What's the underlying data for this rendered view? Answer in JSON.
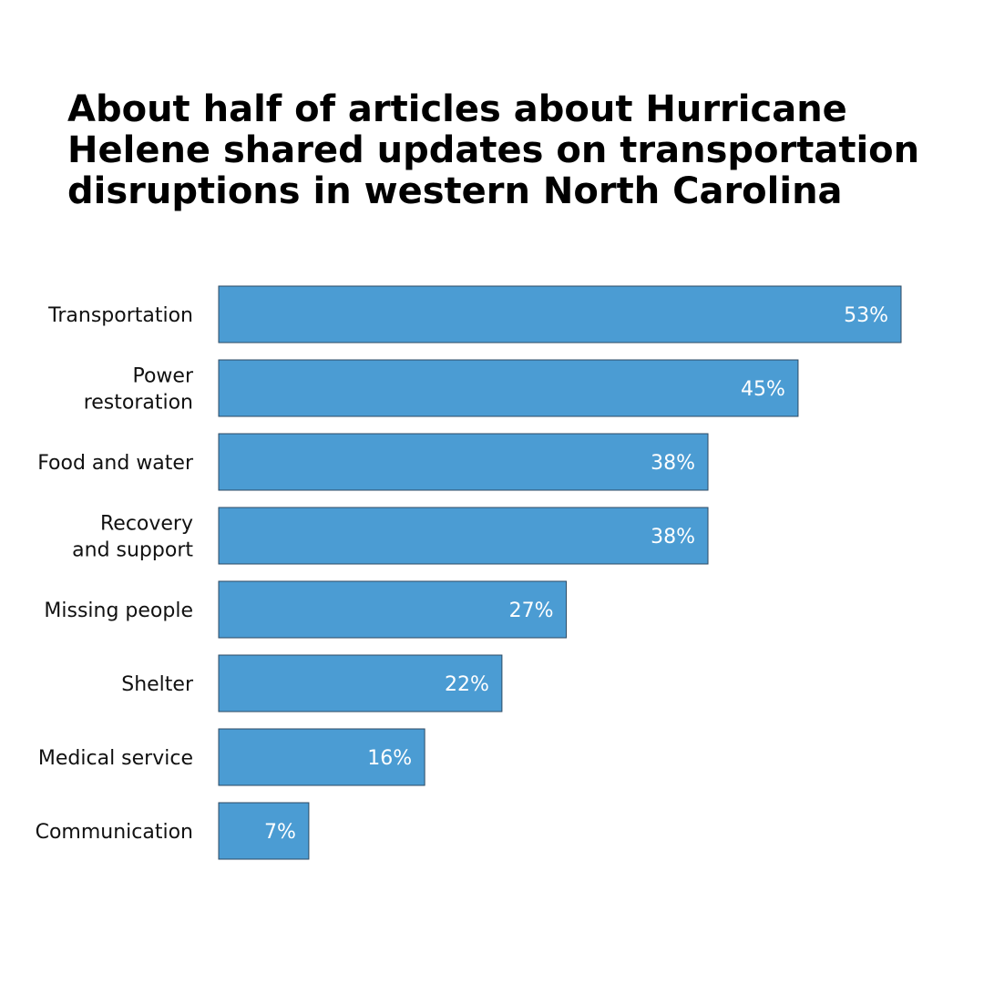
{
  "chart_data": {
    "type": "bar",
    "orientation": "horizontal",
    "title_lines": [
      "About half of articles about Hurricane",
      "Helene shared updates on transportation",
      "disruptions in western North Carolina"
    ],
    "categories": [
      [
        "Transportation"
      ],
      [
        "Power",
        "restoration"
      ],
      [
        "Food and water"
      ],
      [
        "Recovery",
        "and support"
      ],
      [
        "Missing people"
      ],
      [
        "Shelter"
      ],
      [
        "Medical service"
      ],
      [
        "Communication"
      ]
    ],
    "values": [
      53,
      45,
      38,
      38,
      27,
      22,
      16,
      7
    ],
    "value_labels": [
      "53%",
      "45%",
      "38%",
      "38%",
      "27%",
      "22%",
      "16%",
      "7%"
    ],
    "xlim": [
      0,
      53
    ],
    "grid": false,
    "legend": "none",
    "bar_color": "#4b9cd3",
    "bar_border_color": "#2c4a63",
    "value_label_color": "#ffffff"
  }
}
